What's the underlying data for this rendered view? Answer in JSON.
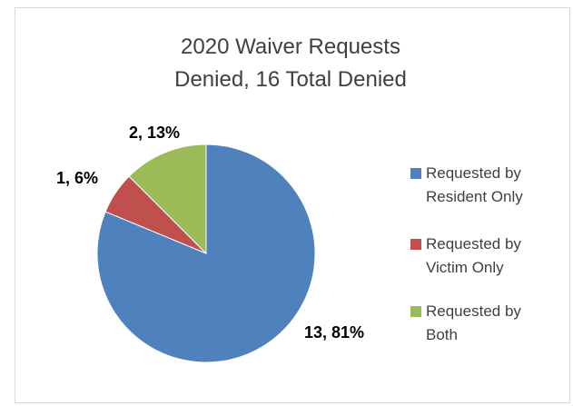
{
  "chart_data": {
    "type": "pie",
    "title": "2020 Waiver Requests Denied, 16 Total Denied",
    "categories": [
      "Requested by Resident Only",
      "Requested by Victim Only",
      "Requested by Both"
    ],
    "values": [
      13,
      1,
      2
    ],
    "value_labels": [
      "13, 81%",
      "1, 6%",
      "2, 13%"
    ],
    "colors": [
      "#4f81bd",
      "#c0504d",
      "#9bbb59"
    ],
    "legend": "right"
  }
}
